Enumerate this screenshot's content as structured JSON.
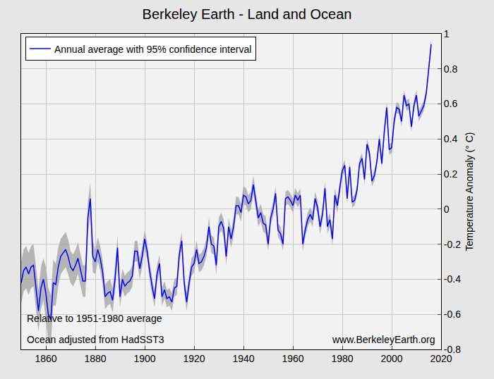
{
  "chart_data": {
    "type": "line",
    "title": "Berkeley Earth - Land and Ocean",
    "y_label": "Temperature Anomaly (° C)",
    "annotations": [
      "Relative to 1951-1980 average",
      "Ocean adjusted from HadSST3",
      "www.BerkeleyEarth.org"
    ],
    "legend": "upper left",
    "grid": true,
    "xlim": [
      1850,
      2020
    ],
    "xticks": [
      1860,
      1880,
      1900,
      1920,
      1940,
      1960,
      1980,
      2000,
      2020
    ],
    "ylim": [
      -0.8,
      1
    ],
    "yticks": [
      -0.8,
      -0.6,
      -0.4,
      -0.2,
      0,
      0.2,
      0.4,
      0.6,
      0.8,
      1
    ],
    "x": [
      1850,
      1851,
      1852,
      1853,
      1854,
      1855,
      1856,
      1857,
      1858,
      1859,
      1860,
      1861,
      1862,
      1863,
      1864,
      1865,
      1866,
      1867,
      1868,
      1869,
      1870,
      1871,
      1872,
      1873,
      1874,
      1875,
      1876,
      1877,
      1878,
      1879,
      1880,
      1881,
      1882,
      1883,
      1884,
      1885,
      1886,
      1887,
      1888,
      1889,
      1890,
      1891,
      1892,
      1893,
      1894,
      1895,
      1896,
      1897,
      1898,
      1899,
      1900,
      1901,
      1902,
      1903,
      1904,
      1905,
      1906,
      1907,
      1908,
      1909,
      1910,
      1911,
      1912,
      1913,
      1914,
      1915,
      1916,
      1917,
      1918,
      1919,
      1920,
      1921,
      1922,
      1923,
      1924,
      1925,
      1926,
      1927,
      1928,
      1929,
      1930,
      1931,
      1932,
      1933,
      1934,
      1935,
      1936,
      1937,
      1938,
      1939,
      1940,
      1941,
      1942,
      1943,
      1944,
      1945,
      1946,
      1947,
      1948,
      1949,
      1950,
      1951,
      1952,
      1953,
      1954,
      1955,
      1956,
      1957,
      1958,
      1959,
      1960,
      1961,
      1962,
      1963,
      1964,
      1965,
      1966,
      1967,
      1968,
      1969,
      1970,
      1971,
      1972,
      1973,
      1974,
      1975,
      1976,
      1977,
      1978,
      1979,
      1980,
      1981,
      1982,
      1983,
      1984,
      1985,
      1986,
      1987,
      1988,
      1989,
      1990,
      1991,
      1992,
      1993,
      1994,
      1995,
      1996,
      1997,
      1998,
      1999,
      2000,
      2001,
      2002,
      2003,
      2004,
      2005,
      2006,
      2007,
      2008,
      2009,
      2010,
      2011,
      2012,
      2013,
      2014,
      2015,
      2016
    ],
    "series": [
      {
        "name": "Annual average with 95% confidence interval",
        "color": "#0000ff",
        "values": [
          -0.42,
          -0.35,
          -0.33,
          -0.37,
          -0.33,
          -0.32,
          -0.45,
          -0.58,
          -0.45,
          -0.4,
          -0.48,
          -0.6,
          -0.63,
          -0.42,
          -0.43,
          -0.33,
          -0.27,
          -0.25,
          -0.23,
          -0.27,
          -0.33,
          -0.35,
          -0.32,
          -0.28,
          -0.35,
          -0.41,
          -0.41,
          -0.05,
          0.06,
          -0.27,
          -0.3,
          -0.23,
          -0.28,
          -0.36,
          -0.5,
          -0.48,
          -0.47,
          -0.52,
          -0.4,
          -0.22,
          -0.5,
          -0.4,
          -0.44,
          -0.42,
          -0.41,
          -0.38,
          -0.24,
          -0.24,
          -0.34,
          -0.27,
          -0.17,
          -0.24,
          -0.35,
          -0.44,
          -0.51,
          -0.37,
          -0.31,
          -0.5,
          -0.46,
          -0.51,
          -0.5,
          -0.53,
          -0.45,
          -0.44,
          -0.26,
          -0.18,
          -0.42,
          -0.53,
          -0.42,
          -0.33,
          -0.31,
          -0.23,
          -0.31,
          -0.3,
          -0.27,
          -0.22,
          -0.1,
          -0.2,
          -0.21,
          -0.32,
          -0.1,
          -0.07,
          -0.11,
          -0.27,
          -0.1,
          -0.17,
          -0.1,
          0.02,
          0.02,
          -0.02,
          0.08,
          0.07,
          0.03,
          0.05,
          0.14,
          0.05,
          -0.05,
          -0.02,
          -0.08,
          -0.09,
          -0.2,
          -0.05,
          0.0,
          0.09,
          -0.12,
          -0.14,
          -0.2,
          0.06,
          0.07,
          0.05,
          0.02,
          0.08,
          0.05,
          0.08,
          -0.2,
          -0.12,
          -0.06,
          -0.03,
          -0.06,
          0.06,
          0.01,
          -0.1,
          -0.03,
          0.12,
          -0.1,
          -0.06,
          -0.17,
          0.08,
          0.02,
          0.12,
          0.22,
          0.25,
          0.06,
          0.24,
          0.04,
          0.05,
          0.11,
          0.26,
          0.29,
          0.17,
          0.37,
          0.32,
          0.16,
          0.19,
          0.27,
          0.4,
          0.26,
          0.44,
          0.58,
          0.34,
          0.35,
          0.5,
          0.58,
          0.57,
          0.5,
          0.65,
          0.59,
          0.6,
          0.47,
          0.59,
          0.65,
          0.53,
          0.56,
          0.59,
          0.66,
          0.8,
          0.94
        ],
        "ci": [
          0.12,
          0.12,
          0.12,
          0.12,
          0.12,
          0.12,
          0.12,
          0.12,
          0.12,
          0.12,
          0.15,
          0.15,
          0.14,
          0.13,
          0.12,
          0.11,
          0.1,
          0.1,
          0.1,
          0.1,
          0.09,
          0.09,
          0.09,
          0.09,
          0.09,
          0.09,
          0.09,
          0.09,
          0.09,
          0.09,
          0.07,
          0.07,
          0.07,
          0.07,
          0.07,
          0.07,
          0.07,
          0.07,
          0.07,
          0.07,
          0.06,
          0.06,
          0.06,
          0.06,
          0.06,
          0.06,
          0.06,
          0.06,
          0.06,
          0.06,
          0.05,
          0.05,
          0.05,
          0.05,
          0.05,
          0.05,
          0.05,
          0.05,
          0.05,
          0.05,
          0.05,
          0.05,
          0.05,
          0.05,
          0.05,
          0.05,
          0.05,
          0.05,
          0.05,
          0.05,
          0.05,
          0.05,
          0.05,
          0.05,
          0.05,
          0.05,
          0.05,
          0.05,
          0.05,
          0.05,
          0.05,
          0.05,
          0.05,
          0.05,
          0.05,
          0.05,
          0.05,
          0.05,
          0.05,
          0.05,
          0.05,
          0.05,
          0.05,
          0.05,
          0.05,
          0.05,
          0.05,
          0.05,
          0.05,
          0.05,
          0.04,
          0.04,
          0.04,
          0.04,
          0.04,
          0.04,
          0.04,
          0.04,
          0.04,
          0.04,
          0.04,
          0.04,
          0.04,
          0.04,
          0.04,
          0.04,
          0.04,
          0.04,
          0.04,
          0.04,
          0.04,
          0.04,
          0.04,
          0.04,
          0.04,
          0.04,
          0.04,
          0.04,
          0.04,
          0.04,
          0.03,
          0.03,
          0.03,
          0.03,
          0.03,
          0.03,
          0.03,
          0.03,
          0.03,
          0.03,
          0.03,
          0.03,
          0.03,
          0.03,
          0.03,
          0.03,
          0.03,
          0.03,
          0.03,
          0.03,
          0.03,
          0.03,
          0.03,
          0.03,
          0.03,
          0.03,
          0.03,
          0.03,
          0.03,
          0.03,
          0.03,
          0.03,
          0.03,
          0.03,
          0.03,
          0.03,
          0.03
        ]
      }
    ]
  }
}
